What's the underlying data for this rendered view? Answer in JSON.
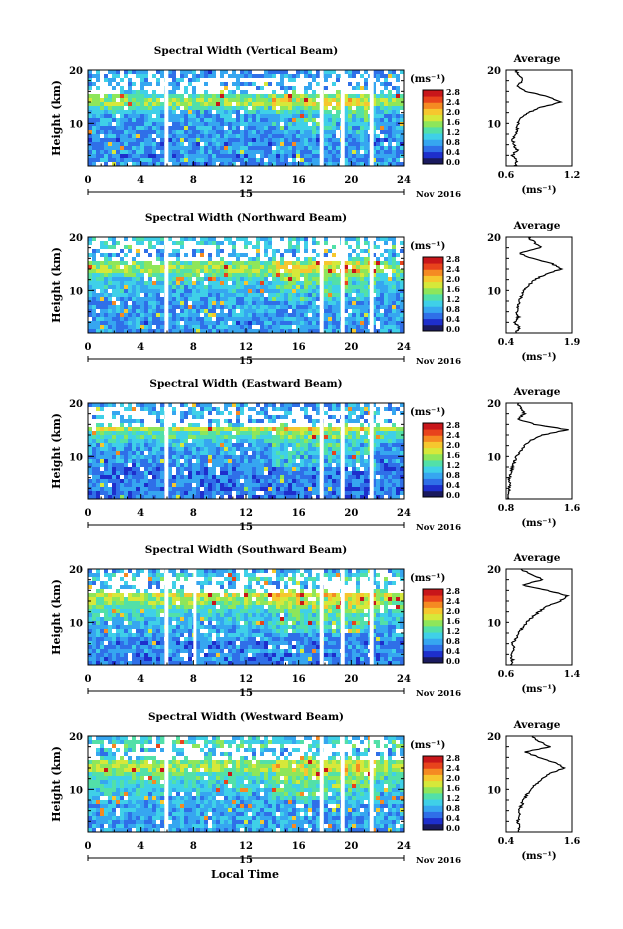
{
  "figure": {
    "xlabel": "Local Time",
    "ylabel": "Height (km)",
    "date_label": "Nov 2016",
    "day_label": "15",
    "colorbar_unit": "(ms⁻¹)",
    "avg_title": "Average",
    "avg_unit": "(ms⁻¹)"
  },
  "colors": {
    "colorbar_stops": [
      "#1a1a5e",
      "#1e2fcc",
      "#2f6fe8",
      "#36a6f0",
      "#3fd0e8",
      "#52e0a8",
      "#8ee65a",
      "#d6e83a",
      "#f6c72e",
      "#f58a22",
      "#e8431c",
      "#c8161a"
    ],
    "heatmap_base": "#2a5fe6",
    "gap": "#ffffff"
  },
  "chart_data": [
    {
      "type": "heatmap",
      "title": "Spectral Width (Vertical Beam)",
      "x": [
        0,
        4,
        8,
        12,
        16,
        20,
        24
      ],
      "xlim": [
        0,
        24
      ],
      "ylim": [
        2,
        20
      ],
      "yticks": [
        10,
        20
      ],
      "colorbar_ticks": [
        0.0,
        0.4,
        0.8,
        1.2,
        1.6,
        2.0,
        2.4,
        2.8
      ],
      "data_gaps_hours": [
        [
          5.8,
          6.1
        ],
        [
          17.6,
          17.9
        ],
        [
          19.2,
          19.5
        ],
        [
          21.4,
          21.7
        ]
      ],
      "average_profile": {
        "title": "Average",
        "xlim": [
          0.6,
          1.2
        ],
        "xticks": [
          0.6,
          1.2
        ],
        "ylim": [
          2,
          20
        ],
        "yticks": [
          10,
          20
        ],
        "height_km": [
          2,
          3,
          4,
          5,
          6,
          7,
          8,
          9,
          10,
          11,
          12,
          13,
          14,
          15,
          16,
          17,
          18,
          19,
          20
        ],
        "width_ms": [
          0.68,
          0.7,
          0.66,
          0.7,
          0.67,
          0.66,
          0.69,
          0.7,
          0.71,
          0.74,
          0.8,
          0.92,
          1.1,
          0.98,
          0.78,
          0.7,
          0.75,
          0.72,
          0.68
        ]
      }
    },
    {
      "type": "heatmap",
      "title": "Spectral Width (Northward Beam)",
      "x": [
        0,
        4,
        8,
        12,
        16,
        20,
        24
      ],
      "xlim": [
        0,
        24
      ],
      "ylim": [
        2,
        20
      ],
      "yticks": [
        10,
        20
      ],
      "colorbar_ticks": [
        0.0,
        0.4,
        0.8,
        1.2,
        1.6,
        2.0,
        2.4,
        2.8
      ],
      "data_gaps_hours": [
        [
          5.8,
          6.1
        ],
        [
          17.6,
          17.9
        ],
        [
          19.2,
          19.5
        ],
        [
          21.4,
          21.7
        ]
      ],
      "average_profile": {
        "title": "Average",
        "xlim": [
          0.4,
          1.9
        ],
        "xticks": [
          0.4,
          1.9
        ],
        "ylim": [
          2,
          20
        ],
        "yticks": [
          10,
          20
        ],
        "height_km": [
          2,
          3,
          4,
          5,
          6,
          7,
          8,
          9,
          10,
          11,
          12,
          13,
          14,
          15,
          16,
          17,
          18,
          19,
          20
        ],
        "width_ms": [
          0.62,
          0.7,
          0.6,
          0.68,
          0.64,
          0.66,
          0.7,
          0.76,
          0.82,
          0.92,
          1.05,
          1.3,
          1.65,
          1.45,
          1.0,
          0.7,
          1.2,
          1.05,
          0.9
        ]
      }
    },
    {
      "type": "heatmap",
      "title": "Spectral Width (Eastward Beam)",
      "x": [
        0,
        4,
        8,
        12,
        16,
        20,
        24
      ],
      "xlim": [
        0,
        24
      ],
      "ylim": [
        2,
        20
      ],
      "yticks": [
        10,
        20
      ],
      "colorbar_ticks": [
        0.0,
        0.4,
        0.8,
        1.2,
        1.6,
        2.0,
        2.4,
        2.8
      ],
      "data_gaps_hours": [
        [
          5.8,
          6.1
        ],
        [
          17.6,
          17.9
        ],
        [
          19.2,
          19.5
        ],
        [
          21.4,
          21.7
        ]
      ],
      "average_profile": {
        "title": "Average",
        "xlim": [
          0.8,
          1.6
        ],
        "xticks": [
          0.8,
          1.6
        ],
        "ylim": [
          2,
          20
        ],
        "yticks": [
          10,
          20
        ],
        "height_km": [
          2,
          3,
          4,
          5,
          6,
          7,
          8,
          9,
          10,
          11,
          12,
          13,
          14,
          15,
          16,
          17,
          18,
          19,
          20
        ],
        "width_ms": [
          0.82,
          0.84,
          0.83,
          0.85,
          0.84,
          0.86,
          0.88,
          0.9,
          0.93,
          0.98,
          1.02,
          1.1,
          1.25,
          1.55,
          1.15,
          0.95,
          1.02,
          0.98,
          0.94
        ]
      }
    },
    {
      "type": "heatmap",
      "title": "Spectral Width (Southward Beam)",
      "x": [
        0,
        4,
        8,
        12,
        16,
        20,
        24
      ],
      "xlim": [
        0,
        24
      ],
      "ylim": [
        2,
        20
      ],
      "yticks": [
        10,
        20
      ],
      "colorbar_ticks": [
        0.0,
        0.4,
        0.8,
        1.2,
        1.6,
        2.0,
        2.4,
        2.8
      ],
      "data_gaps_hours": [
        [
          5.8,
          6.1
        ],
        [
          8.0,
          8.2
        ],
        [
          17.6,
          17.9
        ],
        [
          19.2,
          19.5
        ],
        [
          21.4,
          21.7
        ]
      ],
      "average_profile": {
        "title": "Average",
        "xlim": [
          0.6,
          1.4
        ],
        "xticks": [
          0.6,
          1.4
        ],
        "ylim": [
          2,
          20
        ],
        "yticks": [
          10,
          20
        ],
        "height_km": [
          2,
          3,
          4,
          5,
          6,
          7,
          8,
          9,
          10,
          11,
          12,
          13,
          14,
          15,
          16,
          17,
          18,
          19,
          20
        ],
        "width_ms": [
          0.66,
          0.68,
          0.65,
          0.7,
          0.67,
          0.72,
          0.75,
          0.8,
          0.85,
          0.92,
          1.0,
          1.1,
          1.25,
          1.35,
          1.1,
          0.8,
          1.05,
          0.9,
          0.78
        ]
      }
    },
    {
      "type": "heatmap",
      "title": "Spectral Width (Westward Beam)",
      "x": [
        0,
        4,
        8,
        12,
        16,
        20,
        24
      ],
      "xlim": [
        0,
        24
      ],
      "ylim": [
        2,
        20
      ],
      "yticks": [
        10,
        20
      ],
      "colorbar_ticks": [
        0.0,
        0.4,
        0.8,
        1.2,
        1.6,
        2.0,
        2.4,
        2.8
      ],
      "data_gaps_hours": [
        [
          5.8,
          6.1
        ],
        [
          17.6,
          17.9
        ],
        [
          19.2,
          19.5
        ],
        [
          21.4,
          21.7
        ]
      ],
      "average_profile": {
        "title": "Average",
        "xlim": [
          0.4,
          1.6
        ],
        "xticks": [
          0.4,
          1.6
        ],
        "ylim": [
          2,
          20
        ],
        "yticks": [
          10,
          20
        ],
        "height_km": [
          2,
          3,
          4,
          5,
          6,
          7,
          8,
          9,
          10,
          11,
          12,
          13,
          14,
          15,
          16,
          17,
          18,
          19,
          20
        ],
        "width_ms": [
          0.62,
          0.66,
          0.6,
          0.66,
          0.64,
          0.68,
          0.72,
          0.78,
          0.85,
          0.95,
          1.05,
          1.2,
          1.45,
          1.3,
          1.0,
          0.75,
          1.2,
          1.0,
          0.88
        ]
      }
    }
  ]
}
